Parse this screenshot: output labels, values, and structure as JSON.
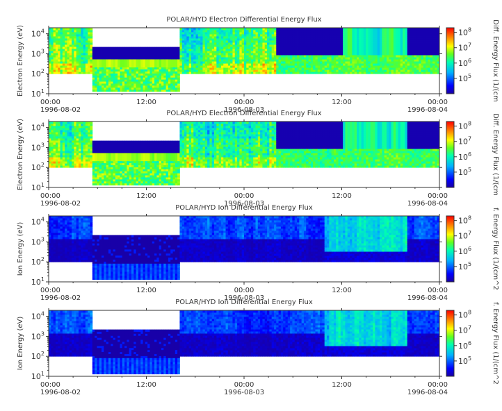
{
  "figure": {
    "panels": [
      {
        "title": "POLAR/HYD  Electron Differential Energy Flux",
        "ylabel": "Electron Energy (eV)",
        "cbar_label": "Diff. Energy Flux (1/(cm",
        "species": "electron"
      },
      {
        "title": "POLAR/HYD  Electron Differential Energy Flux",
        "ylabel": "Electron Energy (eV)",
        "cbar_label": "Diff. Energy Flux (1/(cm",
        "species": "electron"
      },
      {
        "title": "POLAR/HYD  Ion Differential Energy Flux",
        "ylabel": "Ion Energy (eV)",
        "cbar_label": "f. Energy Flux (1/(cm^2",
        "species": "ion"
      },
      {
        "title": "POLAR/HYD  Ion Differential Energy Flux",
        "ylabel": "Ion Energy (eV)",
        "cbar_label": "f. Energy Flux (1/(cm^2",
        "species": "ion"
      }
    ],
    "xticks": {
      "times": [
        "00:00",
        "12:00",
        "00:00",
        "12:00",
        "00:00"
      ],
      "dates": [
        "1996-08-02",
        "",
        "1996-08-03",
        "",
        "1996-08-04"
      ]
    },
    "yticks": [
      {
        "base": "10",
        "exp": "1"
      },
      {
        "base": "10",
        "exp": "2"
      },
      {
        "base": "10",
        "exp": "3"
      },
      {
        "base": "10",
        "exp": "4"
      }
    ],
    "cbar_ticks": [
      {
        "base": "10",
        "exp": "5"
      },
      {
        "base": "10",
        "exp": "6"
      },
      {
        "base": "10",
        "exp": "7"
      },
      {
        "base": "10",
        "exp": "8"
      }
    ]
  },
  "chart_data": {
    "type": "heatmap",
    "x_range_hours": [
      0,
      48
    ],
    "x_start": "1996-08-02 00:00",
    "x_end": "1996-08-04 00:00",
    "y_scale": "log",
    "ylim_ev": [
      10,
      20000
    ],
    "colorbar_scale": "log",
    "colorbar_range": [
      10000,
      200000000
    ],
    "colormap": [
      "#1a00a0",
      "#0000ff",
      "#00b0ff",
      "#00ffb0",
      "#60ff20",
      "#ffff00",
      "#ff8000",
      "#ff0000"
    ],
    "data_gap_hours": [
      5.5,
      16.2
    ],
    "grid": false
  }
}
